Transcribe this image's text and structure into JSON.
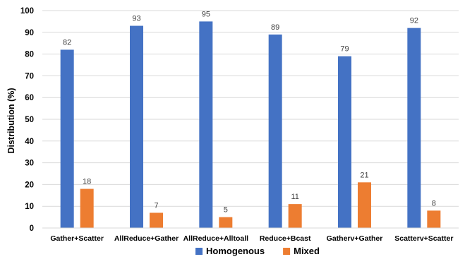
{
  "chart_data": {
    "type": "bar",
    "title": "",
    "xlabel": "",
    "ylabel": "Distribution (%)",
    "ylim": [
      0,
      100
    ],
    "yticks": [
      0,
      10,
      20,
      30,
      40,
      50,
      60,
      70,
      80,
      90,
      100
    ],
    "grid": true,
    "legend_position": "bottom",
    "categories": [
      "Gather+Scatter",
      "AllReduce+Gather",
      "AllReduce+Alltoall",
      "Reduce+Bcast",
      "Gatherv+Gather",
      "Scatterv+Scatter"
    ],
    "series": [
      {
        "name": "Homogenous",
        "color": "#4472c4",
        "values": [
          82,
          93,
          95,
          89,
          79,
          92
        ]
      },
      {
        "name": "Mixed",
        "color": "#ed7d31",
        "values": [
          18,
          7,
          5,
          11,
          21,
          8
        ]
      }
    ]
  }
}
